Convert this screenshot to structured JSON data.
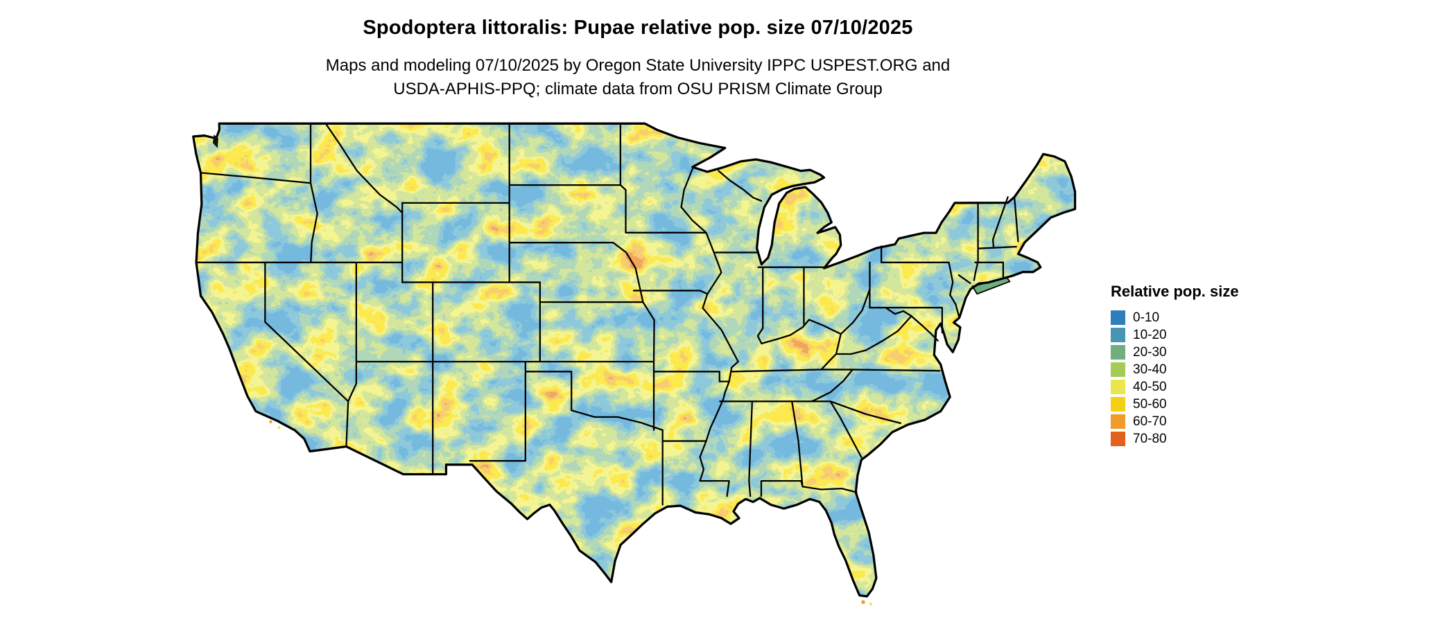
{
  "title": "Spodoptera littoralis: Pupae relative pop. size 07/10/2025",
  "subtitle_line1": "Maps and modeling 07/10/2025 by Oregon State University IPPC USPEST.ORG and",
  "subtitle_line2": "USDA-APHIS-PPQ; climate data from OSU PRISM Climate Group",
  "map": {
    "description": "Continental United States raster map of relative pupae population size",
    "species": "Spodoptera littoralis",
    "date": "07/10/2025"
  },
  "legend": {
    "title": "Relative pop. size",
    "entries": [
      {
        "label": "0-10",
        "color": "#2e7ebc"
      },
      {
        "label": "10-20",
        "color": "#4596b5"
      },
      {
        "label": "20-30",
        "color": "#6fae7e"
      },
      {
        "label": "30-40",
        "color": "#a6cb55"
      },
      {
        "label": "40-50",
        "color": "#e9e74b"
      },
      {
        "label": "50-60",
        "color": "#f5cf13"
      },
      {
        "label": "60-70",
        "color": "#ef9c2b"
      },
      {
        "label": "70-80",
        "color": "#e2621b"
      }
    ]
  }
}
